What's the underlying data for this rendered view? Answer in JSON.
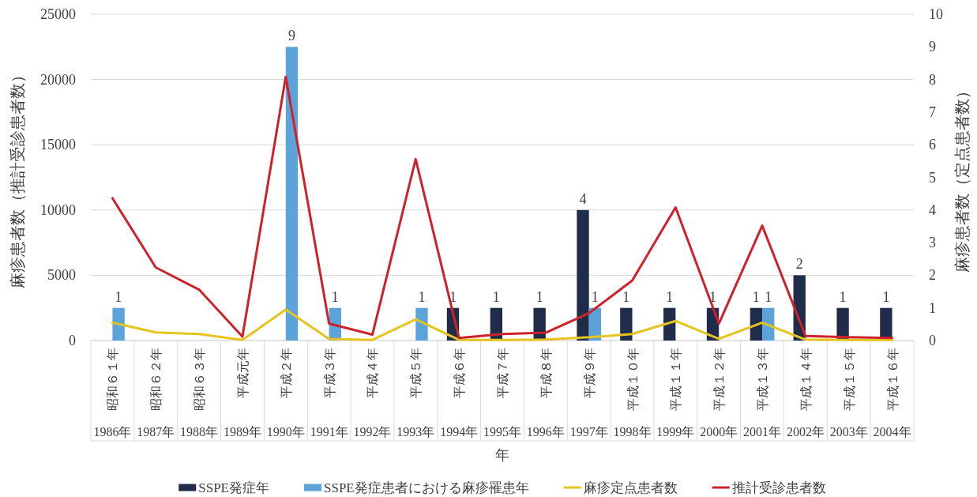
{
  "chart_data": {
    "type": "bar",
    "categories": [
      "1986年",
      "1987年",
      "1988年",
      "1989年",
      "1990年",
      "1991年",
      "1992年",
      "1993年",
      "1994年",
      "1995年",
      "1996年",
      "1997年",
      "1998年",
      "1999年",
      "2000年",
      "2001年",
      "2002年",
      "2003年",
      "2004年"
    ],
    "annotations": [
      "昭和６１年",
      "昭和６２年",
      "昭和６３年",
      "平成元年",
      "平成２年",
      "平成３年",
      "平成４年",
      "平成５年",
      "平成６年",
      "平成７年",
      "平成８年",
      "平成９年",
      "平成１０年",
      "平成１１年",
      "平成１２年",
      "平成１３年",
      "平成１４年",
      "平成１５年",
      "平成１６年"
    ],
    "xlabel": "年",
    "ylabel": "麻疹患者数（推計受診患者数）",
    "y2label": "麻疹患者数（定点患者数）",
    "ylim": [
      0,
      25000
    ],
    "yticks": [
      0,
      5000,
      10000,
      15000,
      20000,
      25000
    ],
    "y2lim": [
      0,
      10
    ],
    "y2ticks": [
      0,
      1,
      2,
      3,
      4,
      5,
      6,
      7,
      8,
      9,
      10
    ],
    "grid": "y",
    "legend": "bottom",
    "series": [
      {
        "name": "SSPE発症年",
        "type": "bar",
        "axis": "y2",
        "color": "#1f2d4a",
        "values": [
          null,
          null,
          null,
          null,
          null,
          null,
          null,
          null,
          1,
          1,
          1,
          4,
          1,
          1,
          1,
          1,
          2,
          1,
          1
        ],
        "value_labels": [
          null,
          null,
          null,
          null,
          null,
          null,
          null,
          null,
          "1",
          "1",
          "1",
          "4",
          "1",
          "1",
          "1",
          "1",
          "2",
          "1",
          "1"
        ]
      },
      {
        "name": "SSPE発症患者における麻疹罹患年",
        "type": "bar",
        "axis": "y2",
        "color": "#5ba3d9",
        "values": [
          1,
          null,
          null,
          null,
          9,
          1,
          null,
          1,
          null,
          null,
          null,
          1,
          null,
          null,
          null,
          1,
          null,
          null,
          null
        ],
        "value_labels": [
          "1",
          null,
          null,
          null,
          "9",
          "1",
          null,
          "1",
          null,
          null,
          null,
          "1",
          null,
          null,
          null,
          "1",
          null,
          null,
          null
        ]
      },
      {
        "name": "麻疹定点患者数",
        "type": "line",
        "axis": "y2",
        "color": "#e6c41e",
        "values": [
          0.55,
          0.25,
          0.2,
          0.02,
          0.95,
          0.05,
          0.02,
          0.65,
          0.02,
          0.02,
          0.03,
          0.1,
          0.2,
          0.6,
          0.05,
          0.55,
          0.03,
          0.02,
          0.02
        ]
      },
      {
        "name": "推計受診患者数",
        "type": "line",
        "color": "#d0202a",
        "values": [
          10900,
          5600,
          3900,
          300,
          20200,
          1300,
          450,
          13900,
          200,
          500,
          600,
          2100,
          4600,
          10200,
          1300,
          8800,
          350,
          250,
          200
        ]
      }
    ]
  }
}
